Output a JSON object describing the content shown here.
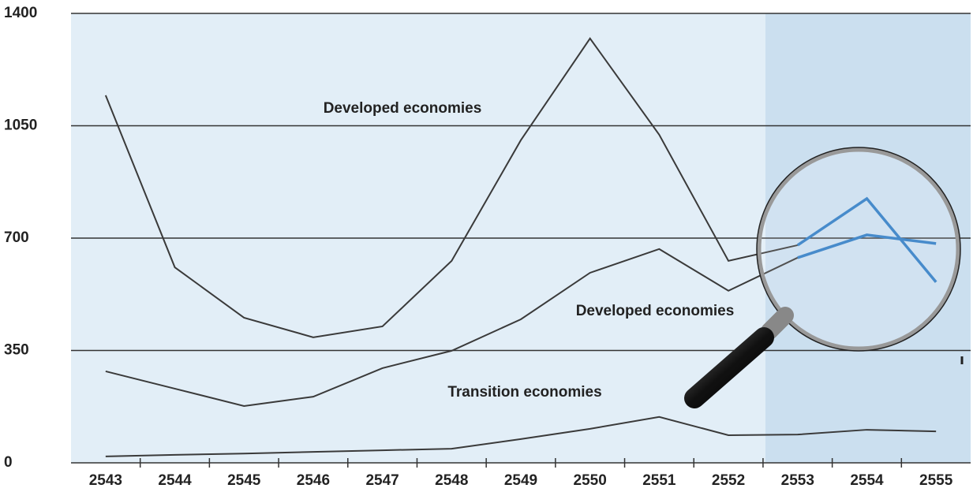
{
  "chart_data": {
    "type": "line",
    "categories": [
      "2543",
      "2544",
      "2545",
      "2546",
      "2547",
      "2548",
      "2549",
      "2550",
      "2551",
      "2552",
      "2553",
      "2554",
      "2555"
    ],
    "series": [
      {
        "name": "Developed economies",
        "color": "#3a3a3a",
        "highlight_color": "#2e7bc4",
        "values": [
          1145,
          609,
          452,
          391,
          425,
          629,
          1005,
          1322,
          1022,
          629,
          678,
          823,
          563
        ]
      },
      {
        "name": "Developed economies",
        "color": "#3a3a3a",
        "highlight_color": "#2e7bc4",
        "values": [
          285,
          231,
          177,
          206,
          295,
          349,
          447,
          592,
          666,
          536,
          639,
          710,
          683
        ]
      },
      {
        "name": "Transition economies",
        "color": "#3a3a3a",
        "values": [
          20,
          25,
          29,
          34,
          39,
          44,
          74,
          106,
          143,
          86,
          88,
          103,
          98
        ]
      }
    ],
    "ylim": [
      0,
      1400
    ],
    "yticks": [
      0,
      350,
      700,
      1050,
      1400
    ],
    "grid": true
  }
}
